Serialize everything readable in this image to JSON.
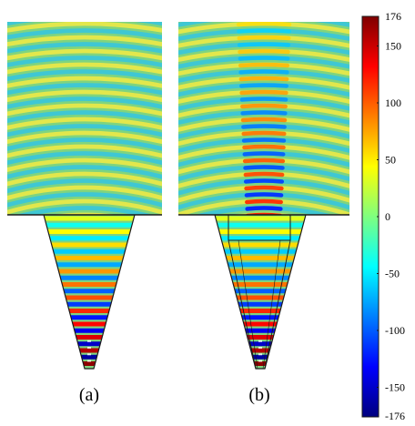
{
  "captions": {
    "a": "(a)",
    "b": "(b)"
  },
  "colorbar": {
    "min": -176,
    "max": 176,
    "ticks": [
      176,
      150,
      100,
      50,
      0,
      -50,
      -100,
      -150,
      -176
    ],
    "colormap": [
      "#00007f",
      "#0000ff",
      "#007fff",
      "#00ffff",
      "#7fff7f",
      "#ffff00",
      "#ff7f00",
      "#ff0000",
      "#7f0000"
    ]
  },
  "colors": {
    "background_field": "#7fd47f",
    "crest": "#e8e84a",
    "trough": "#3cc6d8",
    "outline": "#1a1a1a"
  }
}
